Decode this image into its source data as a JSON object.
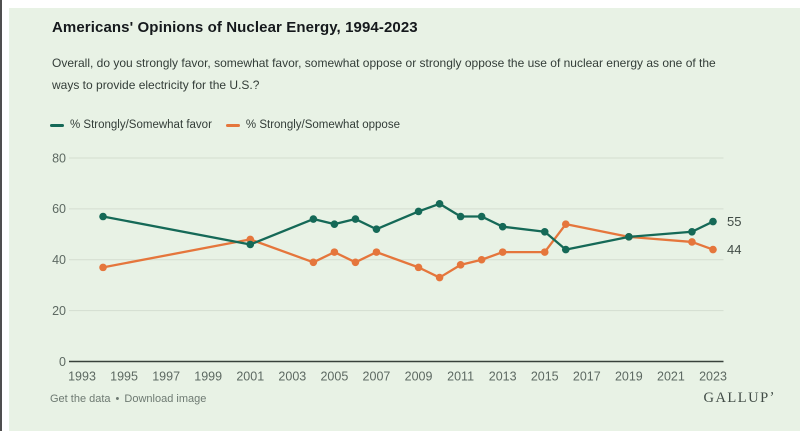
{
  "header": {
    "title": "Americans' Opinions of Nuclear Energy, 1994-2023",
    "subtitle": "Overall, do you strongly favor, somewhat favor, somewhat oppose or strongly oppose the use of nuclear energy as one of the ways to provide electricity for the U.S.?"
  },
  "legend": [
    {
      "label": "% Strongly/Somewhat favor",
      "color": "#156957"
    },
    {
      "label": "% Strongly/Somewhat oppose",
      "color": "#e5763c"
    }
  ],
  "chart_data": {
    "type": "line",
    "x_years": [
      1994,
      2001,
      2004,
      2005,
      2006,
      2007,
      2009,
      2010,
      2011,
      2012,
      2013,
      2015,
      2016,
      2019,
      2022,
      2023
    ],
    "series": [
      {
        "name": "favor",
        "label": "% Strongly/Somewhat favor",
        "color": "#156957",
        "values": [
          57,
          46,
          56,
          54,
          56,
          52,
          59,
          62,
          57,
          57,
          53,
          51,
          44,
          49,
          51,
          55
        ]
      },
      {
        "name": "oppose",
        "label": "% Strongly/Somewhat oppose",
        "color": "#e5763c",
        "values": [
          37,
          48,
          39,
          43,
          39,
          43,
          37,
          33,
          38,
          40,
          43,
          43,
          54,
          49,
          47,
          44
        ]
      }
    ],
    "end_labels": {
      "favor": "55",
      "oppose": "44"
    },
    "xlim": [
      1993,
      2023
    ],
    "ylim": [
      0,
      80
    ],
    "yticks": [
      0,
      20,
      40,
      60,
      80
    ],
    "xticks": [
      "1993",
      "1995",
      "1997",
      "1999",
      "2001",
      "2003",
      "2005",
      "2007",
      "2009",
      "2011",
      "2013",
      "2015",
      "2017",
      "2019",
      "2021",
      "2023"
    ],
    "grid": "horizontal",
    "legend_position": "top-left",
    "colors": {
      "grid": "#d4ddd0",
      "axis": "#39423c",
      "tick_text": "#5d6962",
      "end_label_text": "#414c46"
    }
  },
  "footer": {
    "links": [
      "Get the data",
      "Download image"
    ],
    "separator": "•",
    "brand": "GALLUPʼ"
  }
}
